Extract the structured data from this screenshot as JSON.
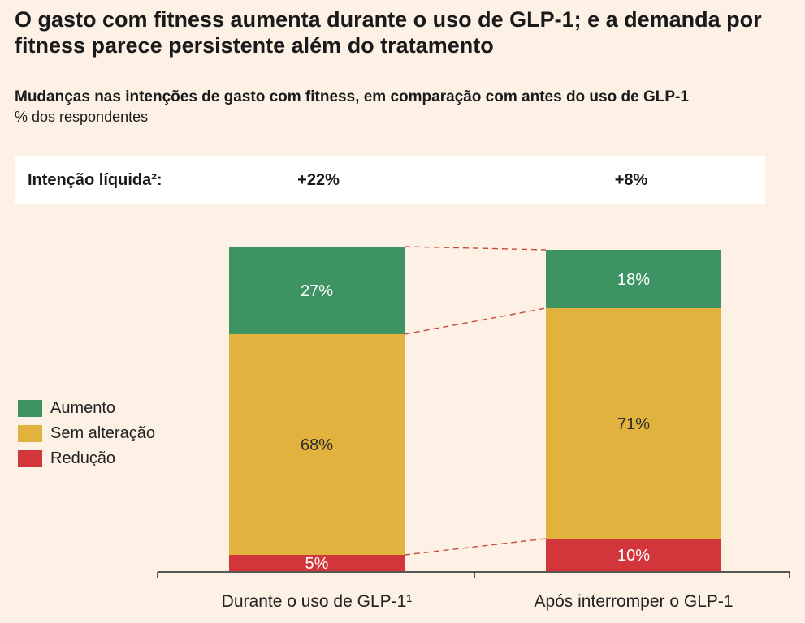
{
  "title": "O gasto com fitness aumenta durante o uso de GLP-1; e a demanda por fitness parece persistente além do tratamento",
  "subtitle": "Mudanças nas intenções de gasto com fitness, em comparação com antes do uso de GLP-1",
  "unit_label": "% dos respondentes",
  "net_intention": {
    "label": "Intenção líquida²:",
    "values": [
      "+22%",
      "+8%"
    ]
  },
  "colors": {
    "increase": "#3d9462",
    "no_change": "#e2b23f",
    "decrease": "#d3363a",
    "connector": "#c94a3c"
  },
  "chart_data": {
    "type": "bar",
    "stacked": true,
    "categories": [
      "Durante o uso de GLP-1¹",
      "Após interromper o GLP-1"
    ],
    "series": [
      {
        "name": "Redução",
        "values": [
          5,
          10
        ],
        "labels": [
          "5%",
          "10%"
        ]
      },
      {
        "name": "Sem alteração",
        "values": [
          68,
          71
        ],
        "labels": [
          "68%",
          "71%"
        ]
      },
      {
        "name": "Aumento",
        "values": [
          27,
          18
        ],
        "labels": [
          "27%",
          "18%"
        ]
      }
    ],
    "ylim": [
      0,
      100
    ],
    "legend": "left",
    "legend_order": [
      "Aumento",
      "Sem alteração",
      "Redução"
    ],
    "grid": false
  }
}
